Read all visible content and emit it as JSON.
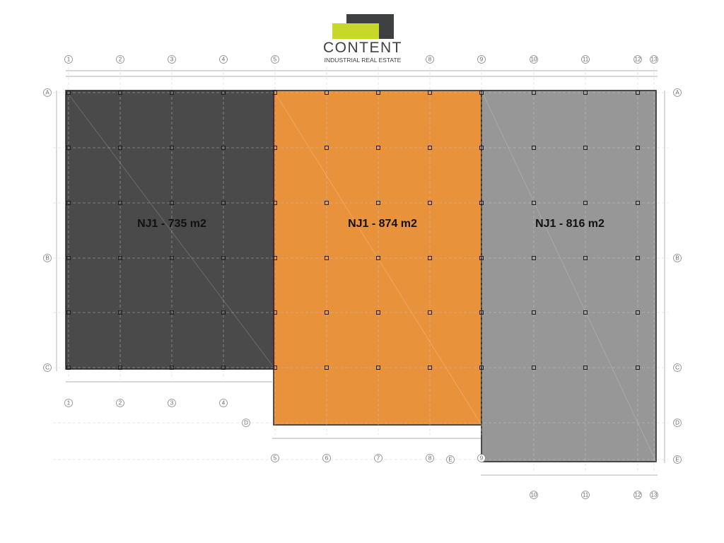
{
  "logo": {
    "word": "CONTENT",
    "tagline": "INDUSTRIAL REAL ESTATE",
    "colors": {
      "dark": "#3f4042",
      "accent": "#c7d82a"
    }
  },
  "units": [
    {
      "label": "NJ1 - 735 m2",
      "color": "#4a4a4a"
    },
    {
      "label": "NJ1 - 874 m2",
      "color": "#e8923c"
    },
    {
      "label": "NJ1 - 816 m2",
      "color": "#979797"
    }
  ],
  "grid": {
    "columns": [
      "1",
      "2",
      "3",
      "4",
      "5",
      "6",
      "7",
      "8",
      "9",
      "10",
      "11",
      "12",
      "13"
    ],
    "rows": [
      "A",
      "B",
      "C",
      "D",
      "E"
    ]
  }
}
